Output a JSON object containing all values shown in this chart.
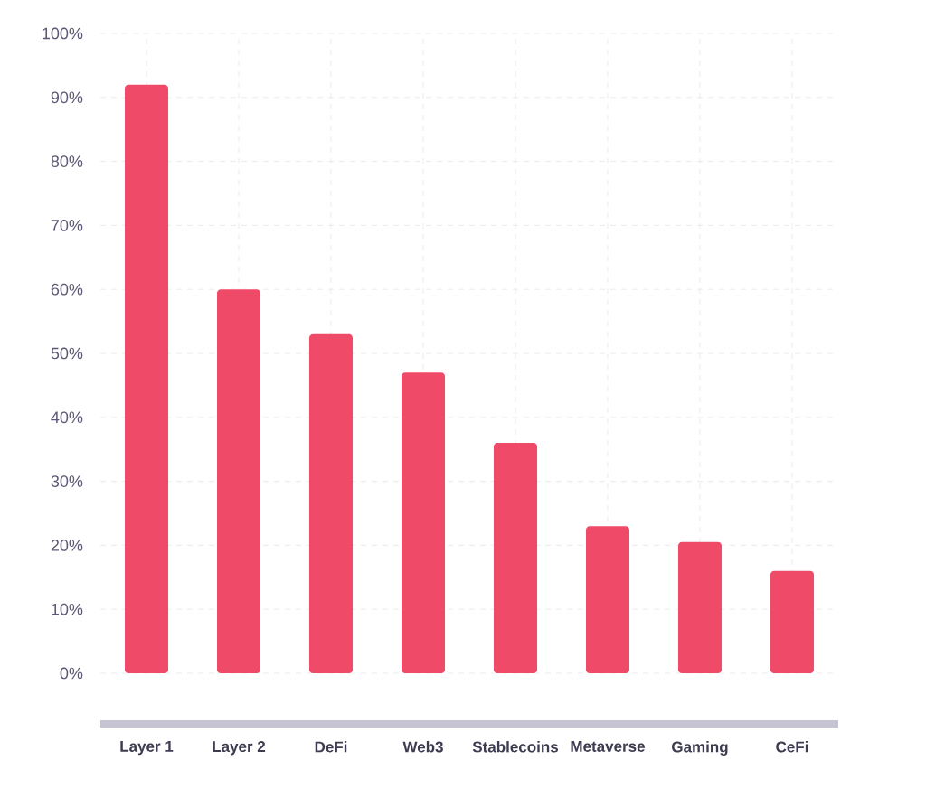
{
  "chart_data": {
    "type": "bar",
    "categories": [
      "Layer 1",
      "Layer 2",
      "DeFi",
      "Web3",
      "Stablecoins",
      "Metaverse",
      "Gaming",
      "CeFi"
    ],
    "values": [
      92,
      60,
      53,
      47,
      36,
      23,
      20.5,
      16
    ],
    "color": "#ef4b69",
    "ylim": [
      0,
      100
    ],
    "yticks": [
      {
        "value": 0,
        "label": "0%"
      },
      {
        "value": 10,
        "label": "10%"
      },
      {
        "value": 20,
        "label": "20%"
      },
      {
        "value": 30,
        "label": "30%"
      },
      {
        "value": 40,
        "label": "40%"
      },
      {
        "value": 50,
        "label": "50%"
      },
      {
        "value": 60,
        "label": "60%"
      },
      {
        "value": 70,
        "label": "70%"
      },
      {
        "value": 80,
        "label": "80%"
      },
      {
        "value": 90,
        "label": "90%"
      },
      {
        "value": 100,
        "label": "100%"
      }
    ],
    "grid": true
  }
}
